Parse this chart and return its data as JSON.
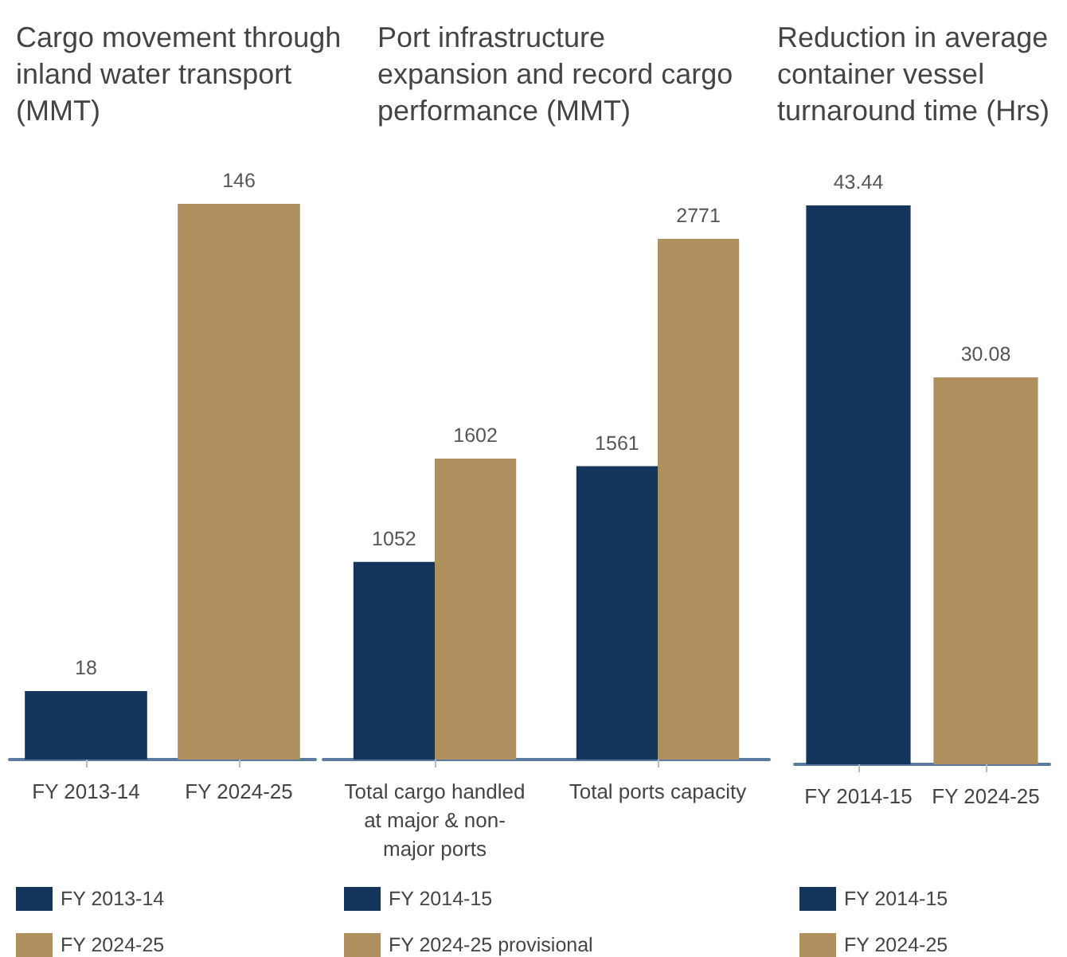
{
  "chart_data": [
    {
      "type": "bar",
      "title": "Cargo movement through inland water transport (MMT)",
      "categories": [
        "FY 2013-14",
        "FY 2024-25"
      ],
      "series": [
        {
          "name": "FY 2013-14",
          "color": "#14365d",
          "values": [
            18,
            null
          ]
        },
        {
          "name": "FY 2024-25",
          "color": "#b0905e",
          "values": [
            null,
            146
          ]
        }
      ],
      "stacked": true,
      "data_labels": true,
      "legend": "bottom left"
    },
    {
      "type": "bar",
      "title": "Port infrastructure expansion and record cargo performance (MMT)",
      "categories": [
        "Total cargo handled at major & non-major ports",
        "Total ports capacity"
      ],
      "series": [
        {
          "name": "FY 2014-15",
          "color": "#14365d",
          "values": [
            1052,
            1561
          ]
        },
        {
          "name": "FY 2024-25 provisional",
          "color": "#b0905e",
          "values": [
            1602,
            2771
          ]
        }
      ],
      "data_labels": true,
      "legend": "bottom left"
    },
    {
      "type": "bar",
      "title": "Reduction in average container vessel turnaround time (Hrs)",
      "categories": [
        "FY 2014-15",
        "FY 2024-25"
      ],
      "series": [
        {
          "name": "FY 2014-15",
          "color": "#14365d",
          "values": [
            43.44,
            null
          ]
        },
        {
          "name": "FY 2024-25",
          "color": "#b0905e",
          "values": [
            null,
            30.08
          ]
        }
      ],
      "stacked": true,
      "data_labels": true,
      "legend": "bottom left"
    }
  ]
}
